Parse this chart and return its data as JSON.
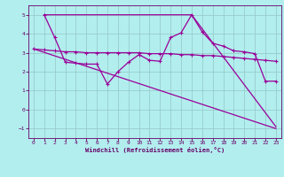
{
  "title": "",
  "xlabel": "Windchill (Refroidissement éolien,°C)",
  "bg_color": "#b2eeee",
  "line_color": "#990099",
  "grid_color": "#99cccc",
  "spine_color": "#660066",
  "tick_color": "#660066",
  "label_color": "#660066",
  "xlim": [
    -0.5,
    23.5
  ],
  "ylim": [
    -1.5,
    5.5
  ],
  "yticks": [
    -1,
    0,
    1,
    2,
    3,
    4,
    5
  ],
  "xticks": [
    0,
    1,
    2,
    3,
    4,
    5,
    6,
    7,
    8,
    9,
    10,
    11,
    12,
    13,
    14,
    15,
    16,
    17,
    18,
    19,
    20,
    21,
    22,
    23
  ],
  "series1_x": [
    1,
    2,
    3,
    4,
    5,
    6,
    7,
    8,
    9,
    10,
    11,
    12,
    13,
    14,
    15,
    16,
    17,
    18,
    19,
    20,
    21,
    22,
    23
  ],
  "series1_y": [
    5.0,
    3.8,
    2.5,
    2.45,
    2.4,
    2.4,
    1.35,
    2.0,
    2.5,
    2.9,
    2.6,
    2.55,
    3.8,
    4.05,
    5.0,
    4.1,
    3.5,
    3.35,
    3.1,
    3.05,
    2.95,
    1.5,
    1.5
  ],
  "series2_x": [
    0,
    1,
    2,
    3,
    4,
    5,
    6,
    7,
    8,
    9,
    10,
    11,
    12,
    13,
    14,
    15,
    16,
    17,
    18,
    19,
    20,
    21,
    22,
    23
  ],
  "series2_y": [
    3.2,
    3.15,
    3.1,
    3.05,
    3.05,
    3.0,
    3.0,
    3.0,
    3.0,
    3.0,
    3.0,
    2.95,
    2.95,
    2.95,
    2.9,
    2.9,
    2.85,
    2.85,
    2.8,
    2.75,
    2.7,
    2.65,
    2.6,
    2.55
  ],
  "series3_x": [
    1,
    15,
    23
  ],
  "series3_y": [
    5.0,
    5.0,
    -0.9
  ],
  "series4_x": [
    0,
    23
  ],
  "series4_y": [
    3.2,
    -1.0
  ]
}
